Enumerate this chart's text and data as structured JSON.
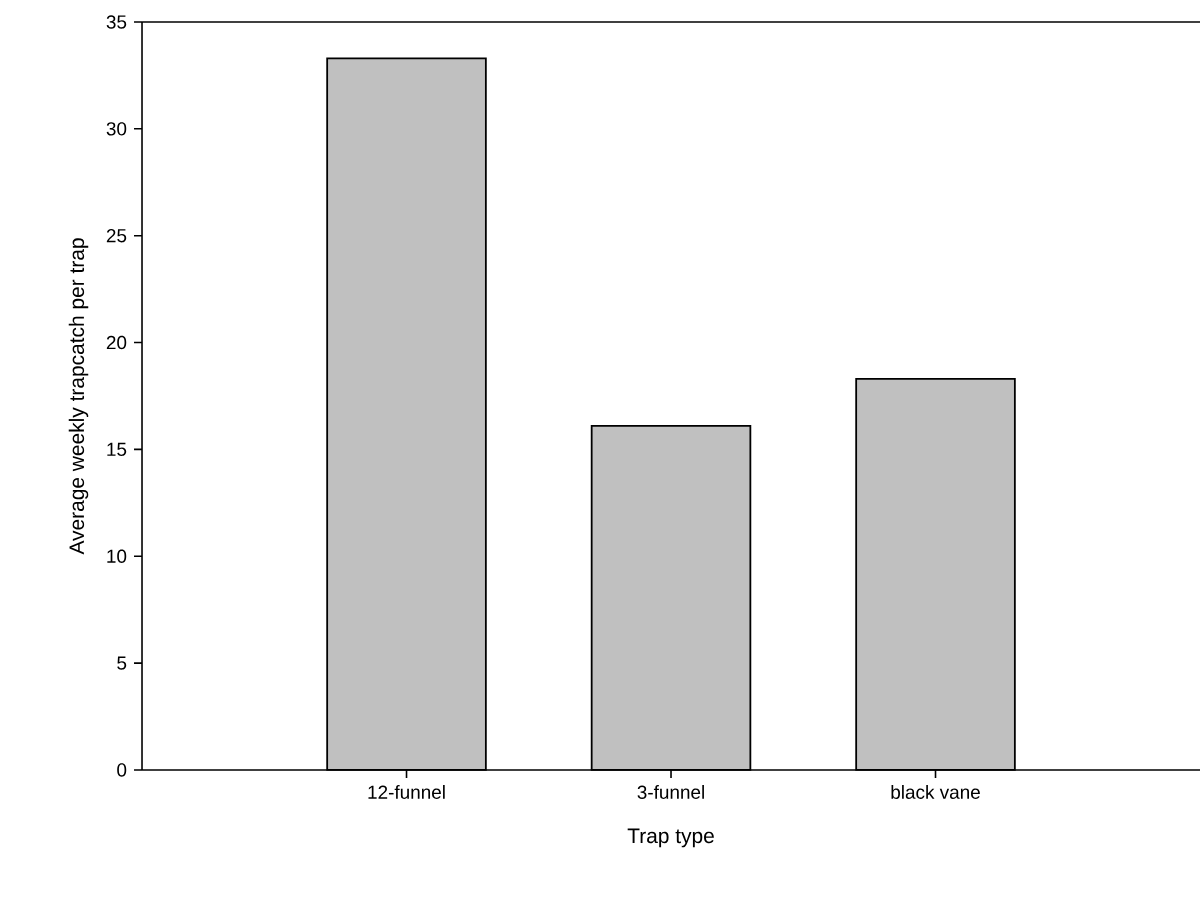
{
  "chart_data": {
    "type": "bar",
    "xlabel": "Trap type",
    "ylabel": "Average weekly trapcatch per trap",
    "categories": [
      "12-funnel",
      "3-funnel",
      "black vane"
    ],
    "values": [
      33.3,
      16.1,
      18.3
    ],
    "color": "#c0c0c0",
    "ylim": [
      0,
      35
    ],
    "yticks": [
      0,
      5,
      10,
      15,
      20,
      25,
      30,
      35
    ],
    "grid": false
  }
}
